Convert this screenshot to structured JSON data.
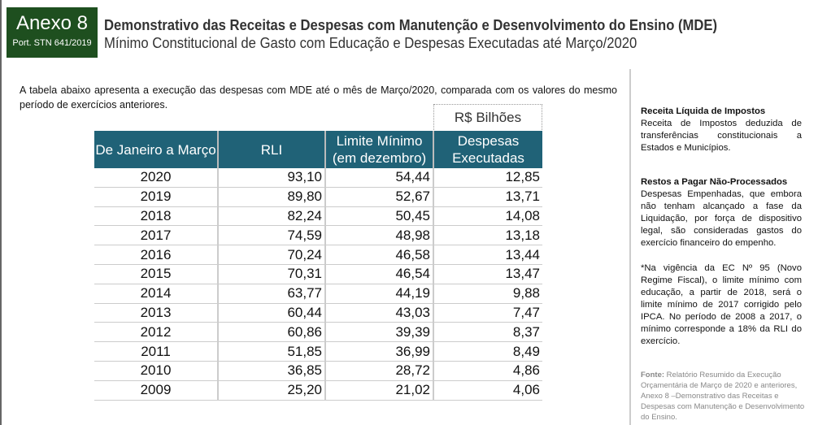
{
  "header": {
    "badge_title": "Anexo 8",
    "badge_subtitle": "Port. STN 641/2019",
    "title": "Demonstrativo das Receitas e Despesas com Manutenção e Desenvolvimento do Ensino (MDE)",
    "subtitle": "Mínimo Constitucional de Gasto com Educação e Despesas Executadas até Março/2020"
  },
  "intro": "A tabela abaixo apresenta a execução das despesas com MDE até o mês de Março/2020, comparada com os valores do mesmo período de exercícios anteriores.",
  "table": {
    "unit": "R$ Bilhões",
    "header_color": "#206277",
    "columns": [
      "De Janeiro a Março",
      "RLI",
      "Limite Mínimo (em dezembro)",
      "Despesas Executadas"
    ],
    "rows": [
      [
        "2020",
        "93,10",
        "54,44",
        "12,85"
      ],
      [
        "2019",
        "89,80",
        "52,67",
        "13,71"
      ],
      [
        "2018",
        "82,24",
        "50,45",
        "14,08"
      ],
      [
        "2017",
        "74,59",
        "48,98",
        "13,18"
      ],
      [
        "2016",
        "70,24",
        "46,58",
        "13,44"
      ],
      [
        "2015",
        "70,31",
        "46,54",
        "13,47"
      ],
      [
        "2014",
        "63,77",
        "44,19",
        "9,88"
      ],
      [
        "2013",
        "60,44",
        "43,03",
        "7,47"
      ],
      [
        "2012",
        "60,86",
        "39,39",
        "8,37"
      ],
      [
        "2011",
        "51,85",
        "36,99",
        "8,49"
      ],
      [
        "2010",
        "36,85",
        "28,72",
        "4,86"
      ],
      [
        "2009",
        "25,20",
        "21,02",
        "4,06"
      ]
    ]
  },
  "sidebar": {
    "notes": [
      {
        "title": "Receita Líquida de Impostos",
        "text": "Receita de Impostos deduzida de transferências constitucionais a Estados e Municípios."
      },
      {
        "title": "Restos a Pagar Não-Processados",
        "text": "Despesas Empenhadas, que embora não tenham alcançado a fase da Liquidação, por força de dispositivo legal, são consideradas gastos do exercício financeiro do empenho."
      },
      {
        "title": "",
        "text": "*Na vigência da EC Nº 95 (Novo Regime Fiscal), o limite mínimo com educação, a partir de 2018, será o limite mínimo de 2017 corrigido pelo IPCA. No período de 2008 a 2017, o mínimo corresponde a 18% da RLI do exercício."
      }
    ],
    "source_label": "Fonte:",
    "source_text": "Relatório Resumido da Execução Orçamentária de Março de 2020 e anteriores, Anexo 8 –Demonstrativo das Receitas e Despesas com Manutenção e Desenvolvimento do Ensino."
  }
}
